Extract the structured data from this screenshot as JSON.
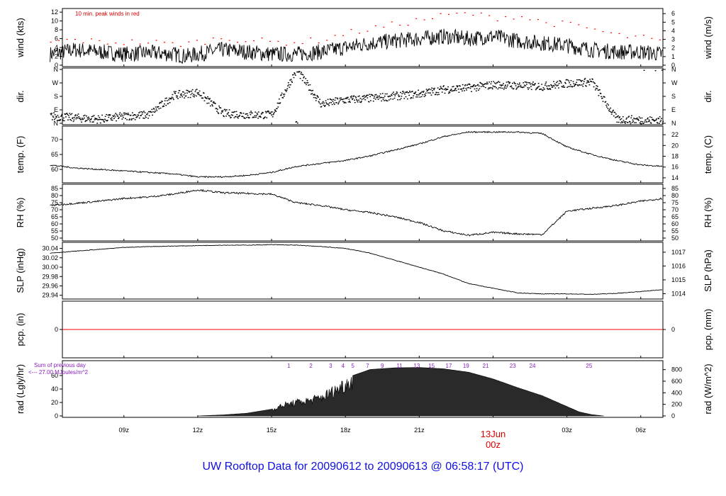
{
  "footer": {
    "prefix": "UW Rooftop Data for",
    "start": "20090612",
    "to": "to",
    "end": "20090613 @ 06:58:17",
    "tz": "(UTC)"
  },
  "chart_data": [
    {
      "type": "line",
      "panel": "wind",
      "ylabel": "wind (kts)",
      "ylabel_right": "wind (m/s)",
      "yticks": [
        0,
        2,
        4,
        6,
        8,
        10,
        12
      ],
      "yticks_right": [
        0,
        1,
        2,
        3,
        4,
        5,
        6
      ],
      "ylim": [
        0,
        12.5
      ],
      "annotation": "10 min. peak winds in red",
      "series": [
        {
          "color": "#000000",
          "x": [
            6,
            7,
            8,
            9,
            10,
            11,
            11.5,
            12,
            13,
            14,
            15,
            16,
            17,
            18,
            19,
            20,
            21,
            22,
            23,
            24,
            25,
            26,
            27,
            28,
            29,
            30,
            30.9
          ],
          "y": [
            2.5,
            3.5,
            3,
            2.5,
            2.8,
            2.5,
            2,
            2.5,
            3.5,
            3,
            2.5,
            2.5,
            3,
            4,
            5,
            5.5,
            6,
            6.5,
            6,
            6.5,
            5.5,
            5,
            4.5,
            3.5,
            3,
            3,
            2.5
          ]
        },
        {
          "color": "#ff0000",
          "style": "points",
          "x": [
            6,
            7,
            8,
            9,
            10,
            11,
            12,
            13,
            14,
            15,
            16,
            17,
            18,
            19,
            20,
            21,
            22,
            23,
            24,
            25,
            26,
            27,
            28,
            29,
            30,
            30.9
          ],
          "y": [
            5,
            5.5,
            5,
            5,
            5,
            4.5,
            5,
            6,
            5.5,
            5,
            5,
            5.5,
            7,
            8,
            9,
            10,
            11,
            11.5,
            10.5,
            11,
            9.5,
            9,
            8,
            6.5,
            6,
            5
          ]
        }
      ]
    },
    {
      "type": "scatter",
      "panel": "dir",
      "ylabel": "dir.",
      "ylabel_right": "dir.",
      "yticks": [
        "N",
        "E",
        "S",
        "W",
        "N"
      ],
      "ylim": [
        0,
        360
      ],
      "series": [
        {
          "color": "#000000",
          "x": [
            6,
            7,
            8,
            9,
            10,
            11,
            12,
            13,
            14,
            15,
            16,
            17,
            18,
            19,
            20,
            21,
            22,
            23,
            24,
            25,
            26,
            27,
            28,
            29,
            30,
            30.9
          ],
          "y": [
            50,
            40,
            30,
            50,
            60,
            190,
            210,
            70,
            60,
            60,
            360,
            130,
            160,
            170,
            185,
            200,
            230,
            240,
            260,
            255,
            250,
            270,
            280,
            30,
            25,
            20
          ]
        }
      ]
    },
    {
      "type": "line",
      "panel": "temp",
      "ylabel": "temp. (F)",
      "ylabel_right": "temp. (C)",
      "yticks": [
        60,
        65,
        70
      ],
      "yticks_right": [
        14,
        16,
        18,
        20,
        22
      ],
      "ylim": [
        56,
        74
      ],
      "series": [
        {
          "color": "#000000",
          "x": [
            6,
            7,
            8,
            9,
            10,
            11,
            12,
            13,
            14,
            15,
            16,
            17,
            18,
            19,
            20,
            21,
            22,
            23,
            24,
            25,
            26,
            27,
            28,
            29,
            30,
            30.9
          ],
          "y": [
            61.5,
            60.5,
            60,
            59.5,
            59,
            58.5,
            57.5,
            57.5,
            58,
            59,
            61,
            62,
            63,
            64.5,
            66.5,
            68.5,
            71,
            72.5,
            72.5,
            72.5,
            72,
            67.5,
            65,
            63,
            61.5,
            61
          ]
        }
      ]
    },
    {
      "type": "line",
      "panel": "rh",
      "ylabel": "RH (%)",
      "ylabel_right": "RH (%)",
      "yticks": [
        50,
        55,
        60,
        65,
        70,
        75,
        80,
        85
      ],
      "yticks_right": [
        50,
        55,
        60,
        65,
        70,
        75,
        80,
        85
      ],
      "ylim": [
        49,
        87
      ],
      "series": [
        {
          "color": "#000000",
          "x": [
            6,
            7,
            8,
            9,
            10,
            11,
            12,
            13,
            14,
            15,
            16,
            17,
            18,
            19,
            20,
            21,
            22,
            23,
            24,
            25,
            26,
            27,
            28,
            29,
            30,
            30.9
          ],
          "y": [
            73,
            74.5,
            76,
            78,
            79,
            81,
            84,
            82,
            81.5,
            81,
            75,
            73,
            70,
            68,
            65,
            61,
            55,
            52,
            54,
            53,
            52.5,
            69,
            71,
            73,
            76,
            78
          ]
        }
      ]
    },
    {
      "type": "line",
      "panel": "slp",
      "ylabel": "SLP (inHg)",
      "ylabel_right": "SLP (hPa)",
      "yticks": [
        "29.94",
        "29.96",
        "29.98",
        "30.00",
        "30.02",
        "30.04"
      ],
      "yticks_right": [
        1014,
        1015,
        1016,
        1017
      ],
      "ylim": [
        29.935,
        30.05
      ],
      "series": [
        {
          "color": "#000000",
          "x": [
            6,
            7,
            8,
            9,
            10,
            11,
            12,
            13,
            14,
            15,
            16,
            17,
            18,
            19,
            20,
            21,
            22,
            23,
            24,
            25,
            26,
            27,
            28,
            29,
            30,
            30.9
          ],
          "y": [
            30.03,
            30.034,
            30.038,
            30.042,
            30.044,
            30.045,
            30.046,
            30.047,
            30.047,
            30.048,
            30.047,
            30.044,
            30.04,
            30.03,
            30.015,
            30.0,
            29.985,
            29.965,
            29.955,
            29.945,
            29.943,
            29.943,
            29.942,
            29.944,
            29.948,
            29.952
          ]
        }
      ]
    },
    {
      "type": "line",
      "panel": "pcp",
      "ylabel": "pcp. (in)",
      "ylabel_right": "pcp. (mm)",
      "yticks": [
        0
      ],
      "yticks_right": [
        0
      ],
      "ylim": [
        -1,
        1
      ],
      "series": [
        {
          "color": "#ff0000",
          "x": [
            6.5,
            30.9
          ],
          "y": [
            0,
            0
          ]
        }
      ]
    },
    {
      "type": "area",
      "panel": "rad",
      "ylabel": "rad (Lgly/hr)",
      "ylabel_right": "rad (W/m^2)",
      "yticks": [
        0,
        20,
        40,
        60
      ],
      "yticks_right": [
        0,
        200,
        400,
        600,
        800
      ],
      "ylim": [
        0,
        80
      ],
      "annotation_1": "Sum of previous day",
      "annotation_2": "<--- 27.00 MJoules/m^2",
      "markers": [
        "1",
        "2",
        "3",
        "4",
        "5",
        "7",
        "9",
        "11",
        "13",
        "15",
        "17",
        "19",
        "21",
        "23",
        "24",
        "25"
      ],
      "series": [
        {
          "color": "#000000",
          "x": [
            12,
            13,
            14,
            15,
            15.5,
            16,
            16.5,
            17,
            17.5,
            18,
            18.3,
            19,
            20,
            21,
            22,
            23,
            24,
            25,
            26,
            27,
            27.5,
            28,
            28.5
          ],
          "y": [
            0,
            1.5,
            4,
            10,
            18,
            22,
            25,
            30,
            40,
            52,
            60,
            69,
            71.5,
            72,
            70,
            65,
            55,
            42,
            30,
            14,
            6,
            2,
            0
          ]
        }
      ]
    }
  ],
  "x_axis": {
    "range": [
      6.5,
      30.9
    ],
    "ticks": [
      {
        "label": "09z",
        "x": 9
      },
      {
        "label": "12z",
        "x": 12
      },
      {
        "label": "15z",
        "x": 15
      },
      {
        "label": "18z",
        "x": 18
      },
      {
        "label": "21z",
        "x": 21
      },
      {
        "label": "03z",
        "x": 27
      },
      {
        "label": "06z",
        "x": 30
      }
    ],
    "date_tick": {
      "date": "13Jun",
      "time": "00z",
      "x": 24,
      "color": "#dd0000"
    }
  }
}
